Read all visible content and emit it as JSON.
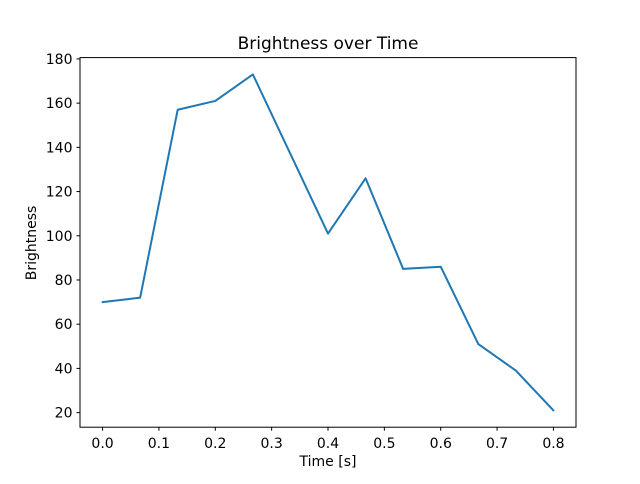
{
  "chart_data": {
    "type": "line",
    "title": "Brightness over Time",
    "xlabel": "Time [s]",
    "ylabel": "Brightness",
    "x": [
      0.0,
      0.0667,
      0.1333,
      0.2,
      0.2667,
      0.3333,
      0.4,
      0.4667,
      0.5333,
      0.6,
      0.6667,
      0.7333,
      0.8
    ],
    "y": [
      70,
      72,
      157,
      161,
      173,
      137,
      101,
      126,
      85,
      86,
      51,
      39,
      21
    ],
    "x_ticks": [
      0.0,
      0.1,
      0.2,
      0.3,
      0.4,
      0.5,
      0.6,
      0.7,
      0.8
    ],
    "y_ticks": [
      20,
      40,
      60,
      80,
      100,
      120,
      140,
      160,
      180
    ],
    "xlim": [
      -0.04,
      0.84
    ],
    "ylim": [
      13.4,
      180.6
    ],
    "grid": false,
    "legend": "none",
    "line_color": "#1f77b4",
    "spine_color": "#000000",
    "background_color": "#ffffff"
  }
}
